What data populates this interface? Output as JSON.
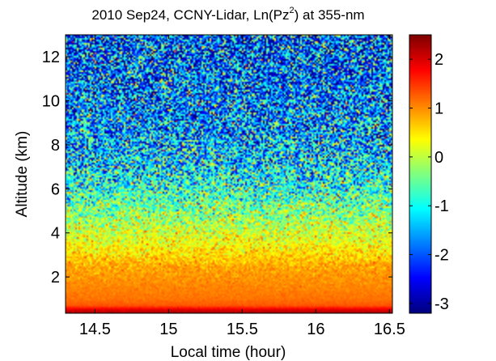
{
  "chart_data": {
    "type": "heatmap",
    "title_parts": {
      "prefix": "2010 Sep24, CCNY-Lidar, Ln(Pz",
      "superscript": "2",
      "suffix": ") at 355-nm"
    },
    "xlabel": "Local time (hour)",
    "ylabel": "Altitude (km)",
    "xlim": [
      14.3,
      16.52
    ],
    "ylim": [
      0.35,
      13.0
    ],
    "xticks": [
      14.5,
      15,
      15.5,
      16,
      16.5
    ],
    "xtick_labels": [
      "14.5",
      "15",
      "15.5",
      "16",
      "16.5"
    ],
    "yticks": [
      2,
      4,
      6,
      8,
      10,
      12
    ],
    "ytick_labels": [
      "2",
      "4",
      "6",
      "8",
      "10",
      "12"
    ],
    "colorbar": {
      "range": [
        -3.2,
        2.5
      ],
      "ticks": [
        2,
        1,
        0,
        -1,
        -2,
        -3
      ],
      "tick_labels": [
        "2",
        "1",
        "0",
        "-1",
        "-2",
        "-3"
      ],
      "colormap": "jet"
    },
    "profile": {
      "altitude_km": [
        0.35,
        0.5,
        0.7,
        1.0,
        1.5,
        2.0,
        2.5,
        3.0,
        3.5,
        4.0,
        5.0,
        6.0,
        7.0,
        8.0,
        10.0,
        13.0
      ],
      "ln_pz2_mean": [
        2.3,
        2.0,
        1.3,
        1.15,
        1.05,
        0.95,
        0.85,
        0.55,
        0.35,
        0.15,
        -0.35,
        -0.85,
        -1.2,
        -1.5,
        -1.8,
        -2.0
      ],
      "noise_std": [
        0.05,
        0.05,
        0.04,
        0.05,
        0.08,
        0.12,
        0.2,
        0.28,
        0.35,
        0.45,
        0.65,
        0.85,
        1.0,
        1.1,
        1.2,
        1.3
      ]
    }
  }
}
